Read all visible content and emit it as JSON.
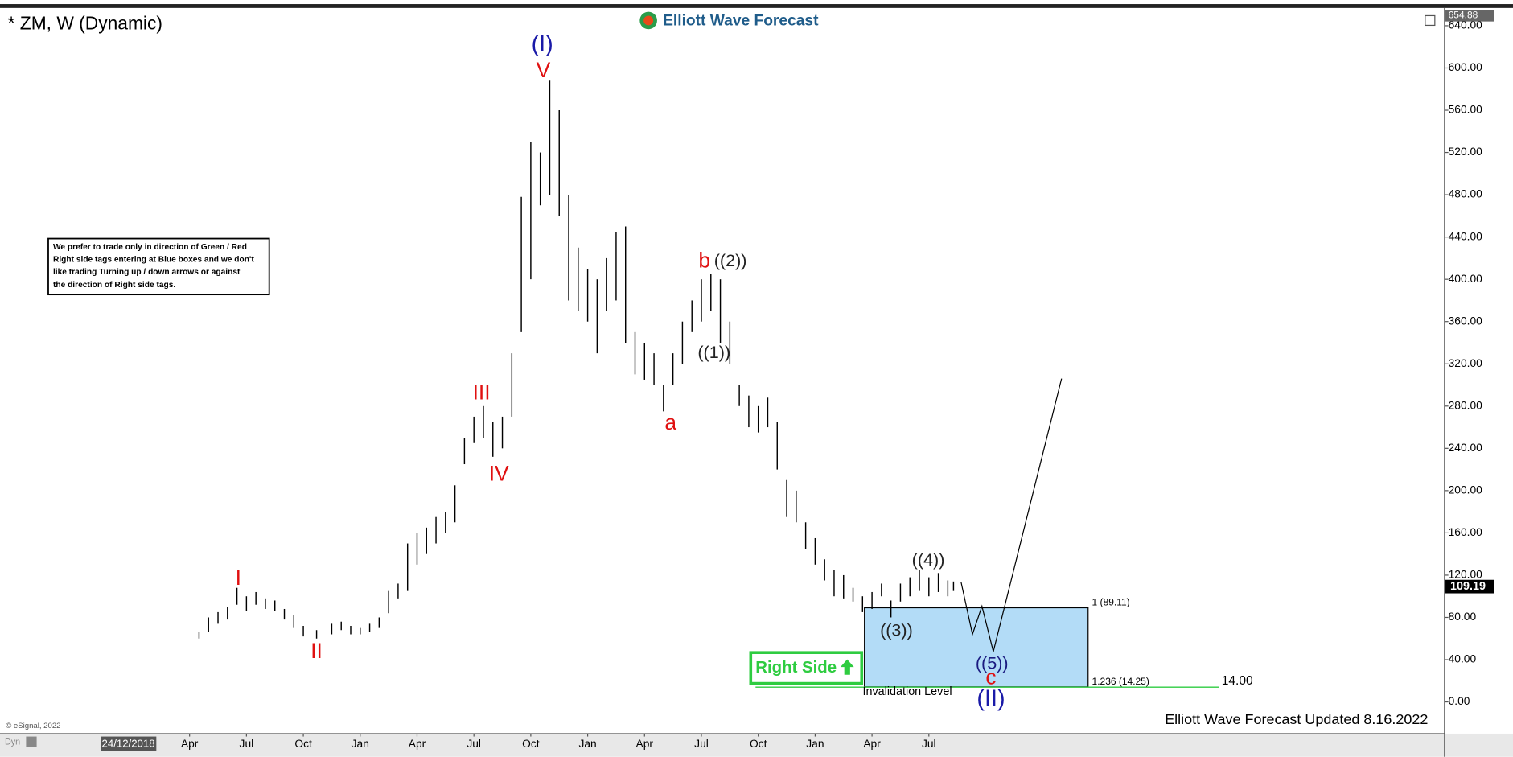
{
  "chart_data": {
    "type": "ohlc",
    "title": "* ZM, W (Dynamic)",
    "logo": "Elliott Wave Forecast",
    "note": [
      "We prefer to trade only in direction of Green / Red",
      "Right side tags entering at Blue boxes and we don't",
      "like trading Turning up / down arrows or against",
      "the direction of Right side tags."
    ],
    "copyright": "© eSignal, 2022",
    "mode": "Dyn",
    "cursor_date": "24/12/2018",
    "footer": "Elliott Wave Forecast Updated 8.16.2022",
    "top_price": {
      "value": 654.88,
      "label": "654.88"
    },
    "last_price": 109.19,
    "color": "#000000",
    "x": [
      3.5,
      4,
      4.5,
      5,
      5.5,
      6,
      6.5,
      7,
      7.5,
      8,
      8.5,
      9,
      9.7,
      10.5,
      11,
      11.5,
      12,
      12.5,
      13,
      13.5,
      14,
      14.5,
      15,
      15.5,
      16,
      16.5,
      17,
      17.5,
      18,
      18.5,
      19,
      19.5,
      20,
      20.5,
      21,
      21.5,
      22,
      22.5,
      23,
      23.5,
      24,
      24.5,
      25,
      25.5,
      26,
      26.5,
      27,
      27.5,
      28,
      28.5,
      29,
      29.5,
      30,
      30.5,
      31,
      31.5,
      32,
      32.5,
      33,
      33.5,
      34,
      34.5,
      35,
      35.5,
      36,
      36.5,
      37,
      37.5,
      38,
      38.5,
      39,
      39.5,
      40,
      40.5,
      41,
      41.5,
      42,
      42.5,
      43,
      43.3
    ],
    "high": [
      66,
      80,
      85,
      90,
      108,
      100,
      104,
      98,
      96,
      88,
      82,
      72,
      68,
      74,
      76,
      72,
      70,
      74,
      80,
      105,
      112,
      150,
      160,
      165,
      175,
      180,
      205,
      250,
      270,
      280,
      265,
      270,
      330,
      478,
      530,
      520,
      588,
      560,
      480,
      430,
      410,
      400,
      420,
      445,
      450,
      350,
      340,
      330,
      300,
      330,
      360,
      380,
      400,
      405,
      400,
      360,
      300,
      290,
      280,
      288,
      265,
      210,
      200,
      170,
      155,
      135,
      125,
      120,
      108,
      100,
      104,
      112,
      96,
      112,
      118,
      125,
      118,
      122,
      115,
      114
    ],
    "low": [
      60,
      66,
      74,
      78,
      92,
      86,
      92,
      88,
      86,
      78,
      70,
      62,
      60,
      64,
      68,
      64,
      64,
      66,
      70,
      84,
      98,
      105,
      130,
      140,
      150,
      160,
      170,
      225,
      245,
      250,
      232,
      240,
      270,
      350,
      400,
      470,
      480,
      460,
      380,
      370,
      360,
      330,
      370,
      380,
      340,
      310,
      305,
      300,
      275,
      300,
      320,
      350,
      360,
      370,
      340,
      320,
      280,
      260,
      255,
      260,
      220,
      175,
      170,
      145,
      130,
      115,
      100,
      98,
      95,
      85,
      88,
      100,
      80,
      95,
      100,
      105,
      100,
      104,
      100,
      105
    ],
    "projection": {
      "x": [
        43.7,
        44.3,
        44.8,
        45.4,
        49.0
      ],
      "values": [
        113.4,
        64,
        90.6,
        47.6,
        306
      ]
    },
    "box": {
      "xlim": [
        38.6,
        50.4
      ],
      "top": 89.11,
      "bottom": 14.25,
      "top_label": "1 (89.11)",
      "bottom_label": "1.236 (14.25)",
      "color": "#b3dcf7"
    },
    "invalidation": {
      "value": 14,
      "label": "14.00",
      "text": "Invalidation Level",
      "color": "#2ecc40"
    },
    "right_side": "Right Side",
    "annotations": [
      {
        "text": "(I)",
        "color": "#1a1aa8"
      },
      {
        "text": "V",
        "color": "#e01010"
      },
      {
        "text": "III",
        "color": "#e01010"
      },
      {
        "text": "IV",
        "color": "#e01010"
      },
      {
        "text": "I",
        "color": "#e01010"
      },
      {
        "text": "II",
        "color": "#e01010"
      },
      {
        "text": "a",
        "color": "#e01010"
      },
      {
        "text": "b",
        "color": "#e01010"
      },
      {
        "text": "((2))",
        "color": "#222222"
      },
      {
        "text": "((1))",
        "color": "#222222"
      },
      {
        "text": "((4))",
        "color": "#222222"
      },
      {
        "text": "((3))",
        "color": "#222222"
      },
      {
        "text": "((5))",
        "color": "#1a1a80"
      },
      {
        "text": "c",
        "color": "#e01010"
      },
      {
        "text": "(II)",
        "color": "#1a1aa8"
      }
    ],
    "xlim": [
      -7.0,
      69.2
    ],
    "ylim": [
      -30,
      655
    ],
    "xticks": [
      {
        "value": 3,
        "label": "Apr"
      },
      {
        "value": 6,
        "label": "Jul"
      },
      {
        "value": 9,
        "label": "Oct"
      },
      {
        "value": 12,
        "label": "Jan"
      },
      {
        "value": 15,
        "label": "Apr"
      },
      {
        "value": 18,
        "label": "Jul"
      },
      {
        "value": 21,
        "label": "Oct"
      },
      {
        "value": 24,
        "label": "Jan"
      },
      {
        "value": 27,
        "label": "Apr"
      },
      {
        "value": 30,
        "label": "Jul"
      },
      {
        "value": 33,
        "label": "Oct"
      },
      {
        "value": 36,
        "label": "Jan"
      },
      {
        "value": 39,
        "label": "Apr"
      },
      {
        "value": 42,
        "label": "Jul"
      }
    ],
    "yticks": [
      {
        "value": 0,
        "label": "0.00"
      },
      {
        "value": 40,
        "label": "40.00"
      },
      {
        "value": 80,
        "label": "80.00"
      },
      {
        "value": 120,
        "label": "120.00"
      },
      {
        "value": 160,
        "label": "160.00"
      },
      {
        "value": 200,
        "label": "200.00"
      },
      {
        "value": 240,
        "label": "240.00"
      },
      {
        "value": 280,
        "label": "280.00"
      },
      {
        "value": 320,
        "label": "320.00"
      },
      {
        "value": 360,
        "label": "360.00"
      },
      {
        "value": 400,
        "label": "400.00"
      },
      {
        "value": 440,
        "label": "440.00"
      },
      {
        "value": 480,
        "label": "480.00"
      },
      {
        "value": 520,
        "label": "520.00"
      },
      {
        "value": 560,
        "label": "560.00"
      },
      {
        "value": 600,
        "label": "600.00"
      },
      {
        "value": 640,
        "label": "640.00"
      }
    ]
  }
}
